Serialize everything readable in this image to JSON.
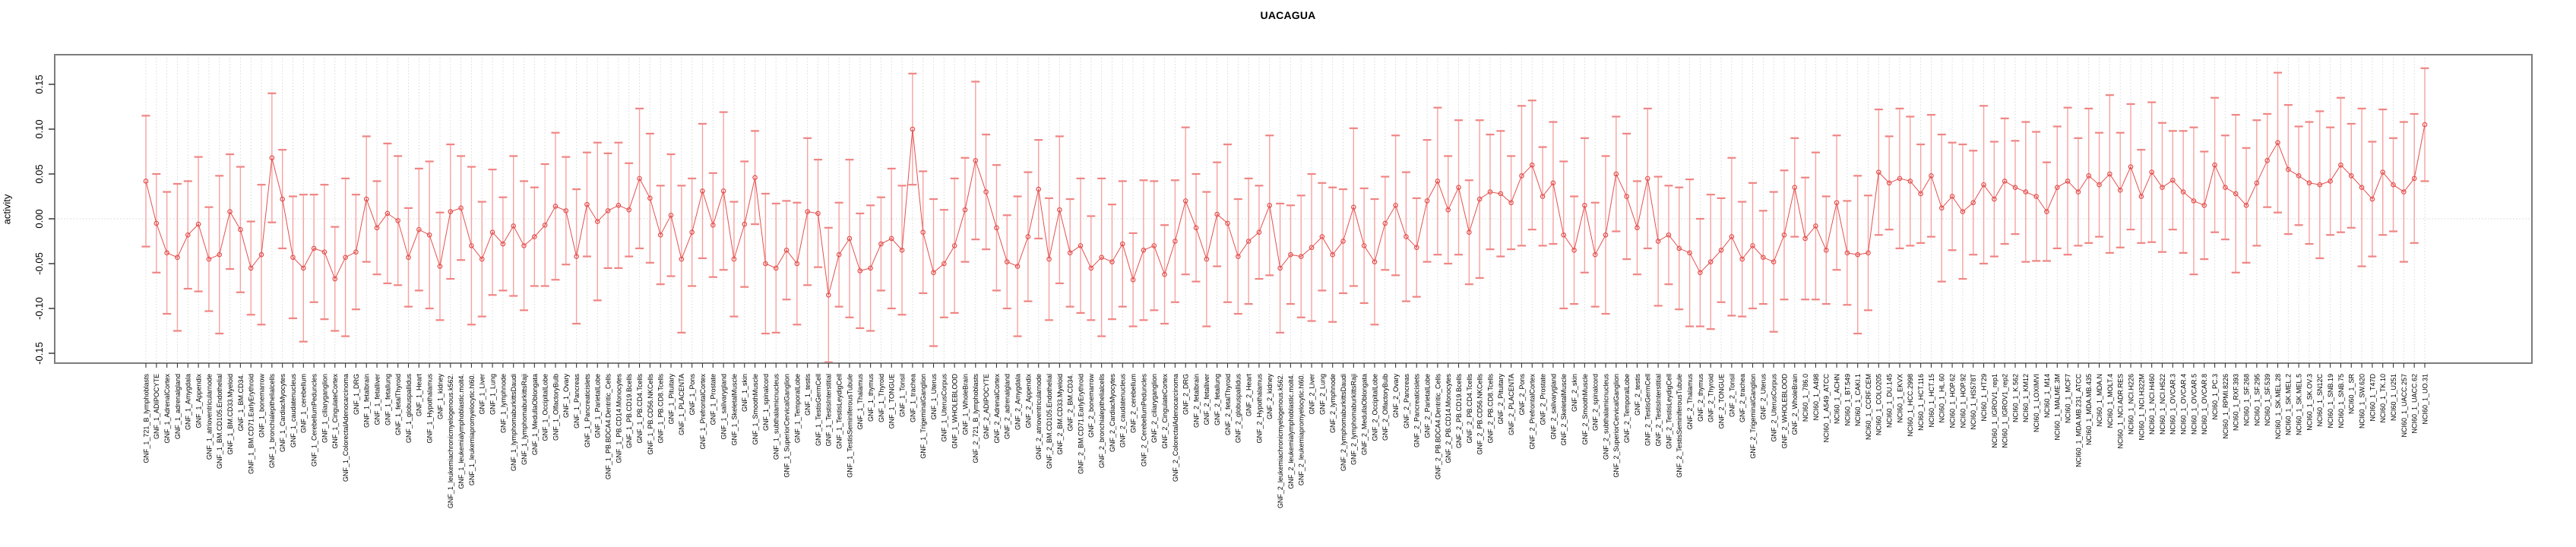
{
  "title": "UACAGUA",
  "chart_data": {
    "type": "line",
    "subtype": "points-with-error-bars",
    "title": "UACAGUA",
    "xlabel": "",
    "ylabel": "activity",
    "ylim": [
      -0.161,
      0.183
    ],
    "y_ticks": [
      -0.15,
      -0.1,
      -0.05,
      0.0,
      0.05,
      0.1,
      0.15
    ],
    "grid": {
      "vertical_dotted_per_category": true,
      "horizontal_dotted_at_zero": true
    },
    "legend": "none",
    "point_style": "open-circle",
    "colors": {
      "series": "#e4504e",
      "error_bar": "#f5a3a1",
      "error_cap": "#ef8583",
      "grid": "#d4d4d4",
      "box": "#7d7d7d",
      "tick": "#3a3a3a",
      "text": "#000000",
      "background": "#ffffff"
    },
    "categories": [
      "GNF_1_721_B_lymphoblasts",
      "GNF_1_ADIPOCYTE",
      "GNF_1_AdrenalCortex",
      "GNF_1_adrenalgland",
      "GNF_1_Amygdala",
      "GNF_1_Appendix",
      "GNF_1_atrioventricularnode",
      "GNF_1_BM.CD105.Endothelial",
      "GNF_1_BM.CD33.Myeloid",
      "GNF_1_BM.CD34.",
      "GNF_1_BM.CD71.EarlyErythroid",
      "GNF_1_bonemarrow",
      "GNF_1_bronchialepithelialcells",
      "GNF_1_CardiacMyocytes",
      "GNF_1_caudatenucleus",
      "GNF_1_cerebellum",
      "GNF_1_CerebellumPeduncles",
      "GNF_1_ciliaryganglion",
      "GNF_1_CingulateCortex",
      "GNF_1_ColorectalAdenocarcinoma",
      "GNF_1_DRG",
      "GNF_1_fetalbrain",
      "GNF_1_fetalliver",
      "GNF_1_fetallung",
      "GNF_1_fetalThyroid",
      "GNF_1_globuspallidus",
      "GNF_1_Heart",
      "GNF_1_Hypothalamus",
      "GNF_1_kidney",
      "GNF_1_leukemiachronicmyelogenous.k562.",
      "GNF_1_leukemialymphoblastic.molt4.",
      "GNF_1_leukemiapromyelocytic.hl60.",
      "GNF_1_Liver",
      "GNF_1_Lung",
      "GNF_1_lymphnode",
      "GNF_1_lymphomaburkittsDaudi",
      "GNF_1_lymphomaburkittsRaji",
      "GNF_1_MedullaOblongata",
      "GNF_1_OccipitalLobe",
      "GNF_1_OlfactoryBulb",
      "GNF_1_Ovary",
      "GNF_1_Pancreas",
      "GNF_1_Pancreaticislets",
      "GNF_1_ParietalLobe",
      "GNF_1_PB.BDCA4.Dentritic_Cells",
      "GNF_1_PB.CD14.Monocytes",
      "GNF_1_PB.CD19.Bcells",
      "GNF_1_PB.CD4.Tcells",
      "GNF_1_PB.CD56.NKCells",
      "GNF_1_PB.CD8.Tcells",
      "GNF_1_Pituitary",
      "GNF_1_PLACENTA",
      "GNF_1_Pons",
      "GNF_1_PrefrontalCortex",
      "GNF_1_Prostate",
      "GNF_1_salivarygland",
      "GNF_1_SkeletalMuscle",
      "GNF_1_skin",
      "GNF_1_SmoothMuscle",
      "GNF_1_spinalcord",
      "GNF_1_subthalamicnucleus",
      "GNF_1_SuperiorCervicalGanglion",
      "GNF_1_TemporalLobe",
      "GNF_1_testis",
      "GNF_1_TestisGermCell",
      "GNF_1_TestisInterstitial",
      "GNF_1_TestisLeydigCell",
      "GNF_1_TestisSeminiferousTubule",
      "GNF_1_Thalamus",
      "GNF_1_thymus",
      "GNF_1_Thyroid",
      "GNF_1_TONGUE",
      "GNF_1_Tonsil",
      "GNF_1_trachea",
      "GNF_1_TrigeminalGanglion",
      "GNF_1_Uterus",
      "GNF_1_UterusCorpus",
      "GNF_1_WHOLEBLOOD",
      "GNF_1_WholeBrain",
      "GNF_2_721_B_lymphoblasts",
      "GNF_2_ADIPOCYTE",
      "GNF_2_AdrenalCortex",
      "GNF_2_adrenalgland",
      "GNF_2_Amygdala",
      "GNF_2_Appendix",
      "GNF_2_atrioventricularnode",
      "GNF_2_BM.CD105.Endothelial",
      "GNF_2_BM.CD33.Myeloid",
      "GNF_2_BM.CD34.",
      "GNF_2_BM.CD71.EarlyErythroid",
      "GNF_2_bonemarrow",
      "GNF_2_bronchialepithelialcells",
      "GNF_2_CardiacMyocytes",
      "GNF_2_caudatenucleus",
      "GNF_2_cerebellum",
      "GNF_2_CerebellumPeduncles",
      "GNF_2_ciliaryganglion",
      "GNF_2_CingulateCortex",
      "GNF_2_ColorectalAdenocarcinoma",
      "GNF_2_DRG",
      "GNF_2_fetalbrain",
      "GNF_2_fetalliver",
      "GNF_2_fetallung",
      "GNF_2_fetalThyroid",
      "GNF_2_globuspallidus",
      "GNF_2_Heart",
      "GNF_2_Hypothalamus",
      "GNF_2_kidney",
      "GNF_2_leukemiachronicmyelogenous.k562.",
      "GNF_2_leukemialymphoblastic.molt4.",
      "GNF_2_leukemiapromyelocytic.hl60.",
      "GNF_2_Liver",
      "GNF_2_Lung",
      "GNF_2_lymphnode",
      "GNF_2_lymphomaburkittsDaudi",
      "GNF_2_lymphomaburkittsRaji",
      "GNF_2_MedullaOblongata",
      "GNF_2_OccipitalLobe",
      "GNF_2_OlfactoryBulb",
      "GNF_2_Ovary",
      "GNF_2_Pancreas",
      "GNF_2_Pancreaticislets",
      "GNF_2_ParietalLobe",
      "GNF_2_PB.BDCA4.Dentritic_Cells",
      "GNF_2_PB.CD14.Monocytes",
      "GNF_2_PB.CD19.Bcells",
      "GNF_2_PB.CD4.Tcells",
      "GNF_2_PB.CD56.NKCells",
      "GNF_2_PB.CD8.Tcells",
      "GNF_2_Pituitary",
      "GNF_2_PLACENTA",
      "GNF_2_Pons",
      "GNF_2_PrefrontalCortex",
      "GNF_2_Prostate",
      "GNF_2_salivarygland",
      "GNF_2_SkeletalMuscle",
      "GNF_2_skin",
      "GNF_2_SmoothMuscle",
      "GNF_2_spinalcord",
      "GNF_2_subthalamicnucleus",
      "GNF_2_SuperiorCervicalGanglion",
      "GNF_2_TemporalLobe",
      "GNF_2_testis",
      "GNF_2_TestisGermCell",
      "GNF_2_TestisInterstitial",
      "GNF_2_TestisLeydigCell",
      "GNF_2_TestisSeminiferousTubule",
      "GNF_2_Thalamus",
      "GNF_2_thymus",
      "GNF_2_Thyroid",
      "GNF_2_TONGUE",
      "GNF_2_Tonsil",
      "GNF_2_trachea",
      "GNF_2_TrigeminalGanglion",
      "GNF_2_Uterus",
      "GNF_2_UterusCorpus",
      "GNF_2_WHOLEBLOOD",
      "GNF_2_WholeBrain",
      "NCI60_1_786.0",
      "NCI60_1_A498",
      "NCI60_1_A549_ATCC",
      "NCI60_1_ACHN",
      "NCI60_1_BT.549",
      "NCI60_1_CAKI.1",
      "NCI60_1_CCRF.CEM",
      "NCI60_1_COLO205",
      "NCI60_1_DU.145",
      "NCI60_1_EKVX",
      "NCI60_1_HCC.2998",
      "NCI60_1_HCT.116",
      "NCI60_1_HCT.15",
      "NCI60_1_HL.60",
      "NCI60_1_HOP.62",
      "NCI60_1_HOP.92",
      "NCI60_1_HS578T",
      "NCI60_1_HT29",
      "NCI60_1_IGROV1_rep1",
      "NCI60_1_IGROV1_rep2",
      "NCI60_1_K.562",
      "NCI60_1_KM12",
      "NCI60_1_LOXIMVI",
      "NCI60_1_M14",
      "NCI60_1_MALME.3M",
      "NCI60_1_MCF7",
      "NCI60_1_MDA.MB.231_ATCC",
      "NCI60_1_MDA.MB.435",
      "NCI60_1_MDA.N",
      "NCI60_1_MOLT.4",
      "NCI60_1_NCI.ADR.RES",
      "NCI60_1_NCI.H226",
      "NCI60_1_NCI.H322M",
      "NCI60_1_NCI.H460",
      "NCI60_1_NCI.H522",
      "NCI60_1_OVCAR.3",
      "NCI60_1_OVCAR.4",
      "NCI60_1_OVCAR.5",
      "NCI60_1_OVCAR.8",
      "NCI60_1_PC.3",
      "NCI60_1_RPMI.8226",
      "NCI60_1_RXF.393",
      "NCI60_1_SF.268",
      "NCI60_1_SF.295",
      "NCI60_1_SF.539",
      "NCI60_1_SK.MEL.28",
      "NCI60_1_SK.MEL.2",
      "NCI60_1_SK.MEL.5",
      "NCI60_1_SK.OV.3",
      "NCI60_1_SN12C",
      "NCI60_1_SNB.19",
      "NCI60_1_SNB.75",
      "NCI60_1_SR",
      "NCI60_1_SW.620",
      "NCI60_1_T47D",
      "NCI60_1_TK.10",
      "NCI60_1_U251",
      "NCI60_1_UACC.257",
      "NCI60_1_UACC.62",
      "NCI60_1_UO.31"
    ],
    "series": [
      {
        "name": "activity",
        "values": [
          0.042,
          -0.005,
          -0.038,
          -0.043,
          -0.018,
          -0.006,
          -0.045,
          -0.04,
          0.008,
          -0.012,
          -0.055,
          -0.04,
          0.068,
          0.022,
          -0.043,
          -0.055,
          -0.033,
          -0.037,
          -0.067,
          -0.043,
          -0.037,
          0.022,
          -0.01,
          0.006,
          -0.002,
          -0.043,
          -0.012,
          -0.018,
          -0.053,
          0.008,
          0.012,
          -0.03,
          -0.045,
          -0.015,
          -0.028,
          -0.008,
          -0.03,
          -0.02,
          -0.007,
          0.014,
          0.009,
          -0.042,
          0.016,
          -0.003,
          0.009,
          0.015,
          0.01,
          0.045,
          0.023,
          -0.018,
          0.004,
          -0.045,
          -0.015,
          0.031,
          -0.007,
          0.031,
          -0.045,
          -0.006,
          0.046,
          -0.05,
          -0.055,
          -0.035,
          -0.05,
          0.008,
          0.006,
          -0.085,
          -0.04,
          -0.022,
          -0.058,
          -0.055,
          -0.028,
          -0.022,
          -0.035,
          0.1,
          -0.015,
          -0.06,
          -0.05,
          -0.03,
          0.01,
          0.065,
          0.03,
          -0.01,
          -0.048,
          -0.053,
          -0.02,
          0.033,
          -0.045,
          0.01,
          -0.038,
          -0.03,
          -0.055,
          -0.043,
          -0.048,
          -0.028,
          -0.068,
          -0.035,
          -0.03,
          -0.062,
          -0.025,
          0.02,
          -0.01,
          -0.045,
          0.005,
          -0.005,
          -0.042,
          -0.025,
          -0.015,
          0.015,
          -0.055,
          -0.04,
          -0.042,
          -0.032,
          -0.02,
          -0.04,
          -0.025,
          0.013,
          -0.03,
          -0.048,
          -0.005,
          0.015,
          -0.02,
          -0.032,
          0.02,
          0.042,
          0.01,
          0.035,
          -0.015,
          0.022,
          0.03,
          0.028,
          0.018,
          0.048,
          0.06,
          0.025,
          0.04,
          -0.018,
          -0.035,
          0.015,
          -0.04,
          -0.018,
          0.05,
          0.025,
          -0.01,
          0.045,
          -0.025,
          -0.018,
          -0.033,
          -0.038,
          -0.06,
          -0.048,
          -0.035,
          -0.02,
          -0.045,
          -0.03,
          -0.043,
          -0.048,
          -0.018,
          0.035,
          -0.022,
          -0.008,
          -0.035,
          0.018,
          -0.038,
          -0.04,
          -0.038,
          0.052,
          0.04,
          0.045,
          0.042,
          0.028,
          0.048,
          0.012,
          0.025,
          0.008,
          0.018,
          0.038,
          0.022,
          0.042,
          0.035,
          0.03,
          0.025,
          0.008,
          0.035,
          0.042,
          0.03,
          0.048,
          0.038,
          0.05,
          0.032,
          0.058,
          0.025,
          0.052,
          0.035,
          0.043,
          0.03,
          0.02,
          0.015,
          0.06,
          0.035,
          0.028,
          0.015,
          0.04,
          0.065,
          0.085,
          0.055,
          0.048,
          0.04,
          0.038,
          0.042,
          0.06,
          0.048,
          0.035,
          0.022,
          0.052,
          0.038,
          0.03,
          0.045,
          0.105
        ],
        "errors": [
          0.073,
          0.055,
          0.068,
          0.082,
          0.06,
          0.075,
          0.058,
          0.088,
          0.064,
          0.07,
          0.052,
          0.078,
          0.072,
          0.055,
          0.068,
          0.082,
          0.06,
          0.075,
          0.058,
          0.088,
          0.064,
          0.07,
          0.052,
          0.078,
          0.072,
          0.055,
          0.068,
          0.082,
          0.06,
          0.075,
          0.058,
          0.088,
          0.064,
          0.07,
          0.052,
          0.078,
          0.072,
          0.055,
          0.068,
          0.082,
          0.06,
          0.075,
          0.058,
          0.088,
          0.064,
          0.07,
          0.052,
          0.078,
          0.072,
          0.055,
          0.068,
          0.082,
          0.06,
          0.075,
          0.058,
          0.088,
          0.064,
          0.07,
          0.052,
          0.078,
          0.072,
          0.055,
          0.068,
          0.082,
          0.06,
          0.075,
          0.058,
          0.088,
          0.064,
          0.07,
          0.052,
          0.078,
          0.072,
          0.062,
          0.068,
          0.082,
          0.06,
          0.075,
          0.058,
          0.088,
          0.064,
          0.07,
          0.052,
          0.078,
          0.072,
          0.055,
          0.068,
          0.082,
          0.06,
          0.075,
          0.058,
          0.088,
          0.064,
          0.07,
          0.052,
          0.078,
          0.072,
          0.055,
          0.068,
          0.082,
          0.06,
          0.075,
          0.058,
          0.088,
          0.064,
          0.07,
          0.052,
          0.078,
          0.072,
          0.055,
          0.068,
          0.082,
          0.06,
          0.075,
          0.058,
          0.088,
          0.064,
          0.07,
          0.052,
          0.078,
          0.072,
          0.055,
          0.068,
          0.082,
          0.06,
          0.075,
          0.058,
          0.088,
          0.064,
          0.07,
          0.052,
          0.078,
          0.072,
          0.055,
          0.068,
          0.082,
          0.06,
          0.075,
          0.058,
          0.088,
          0.064,
          0.07,
          0.052,
          0.078,
          0.072,
          0.055,
          0.068,
          0.082,
          0.06,
          0.075,
          0.058,
          0.088,
          0.064,
          0.07,
          0.052,
          0.078,
          0.072,
          0.055,
          0.068,
          0.082,
          0.06,
          0.075,
          0.058,
          0.088,
          0.064,
          0.07,
          0.052,
          0.078,
          0.072,
          0.055,
          0.068,
          0.082,
          0.06,
          0.075,
          0.058,
          0.088,
          0.064,
          0.07,
          0.052,
          0.078,
          0.072,
          0.055,
          0.068,
          0.082,
          0.06,
          0.075,
          0.058,
          0.088,
          0.064,
          0.07,
          0.052,
          0.078,
          0.072,
          0.055,
          0.068,
          0.082,
          0.06,
          0.075,
          0.058,
          0.088,
          0.064,
          0.07,
          0.052,
          0.078,
          0.072,
          0.055,
          0.068,
          0.082,
          0.06,
          0.075,
          0.058,
          0.088,
          0.064,
          0.07,
          0.052,
          0.078,
          0.072,
          0.063
        ]
      }
    ]
  }
}
